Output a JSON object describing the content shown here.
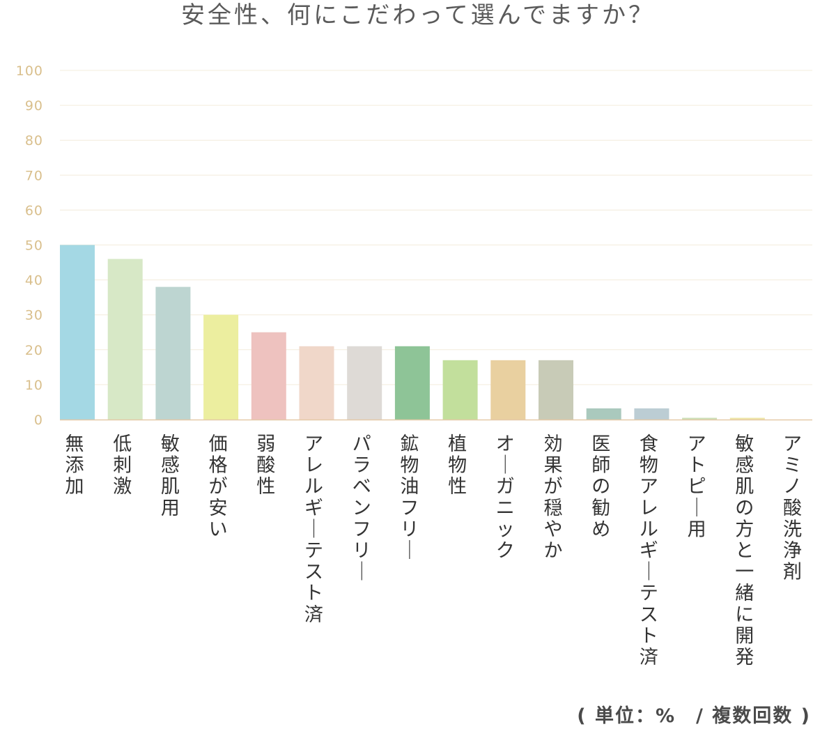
{
  "chart_data": {
    "type": "bar",
    "title": "安全性、何にこだわって選んでますか？",
    "note": "( 単位：%　/ 複数回数 )",
    "ylim": [
      0,
      100
    ],
    "yticks": [
      0,
      10,
      20,
      30,
      40,
      50,
      60,
      70,
      80,
      90,
      100
    ],
    "grid": true,
    "categories": [
      "無添加",
      "低刺激",
      "敏感肌用",
      "価格が安い",
      "弱酸性",
      "アレルギーテスト済",
      "パラベンフリー",
      "鉱物油フリー",
      "植物性",
      "オーガニック",
      "効果が穏やか",
      "医師の勧め",
      "食物アレルギーテスト済",
      "アトピー用",
      "敏感肌の方と一緒に開発",
      "アミノ酸洗浄剤"
    ],
    "values": [
      50,
      46,
      38,
      30,
      25,
      21,
      21,
      21,
      17,
      17,
      17,
      3.2,
      3.2,
      0.5,
      0.5,
      0
    ],
    "colors": [
      "#a4d8e4",
      "#d7e8c6",
      "#bdd5d1",
      "#ecee9f",
      "#eec2bf",
      "#f0d7c9",
      "#dedad6",
      "#8ec497",
      "#c2df9c",
      "#e9d0a0",
      "#c8cbb7",
      "#aac9bd",
      "#bccdd4",
      "#ccdeb6",
      "#eee4a6",
      "#dddddd"
    ],
    "tick_color": "#d9bf8c",
    "grid_color": "#f3ecdc",
    "axis_color": "#e5c9a8"
  }
}
